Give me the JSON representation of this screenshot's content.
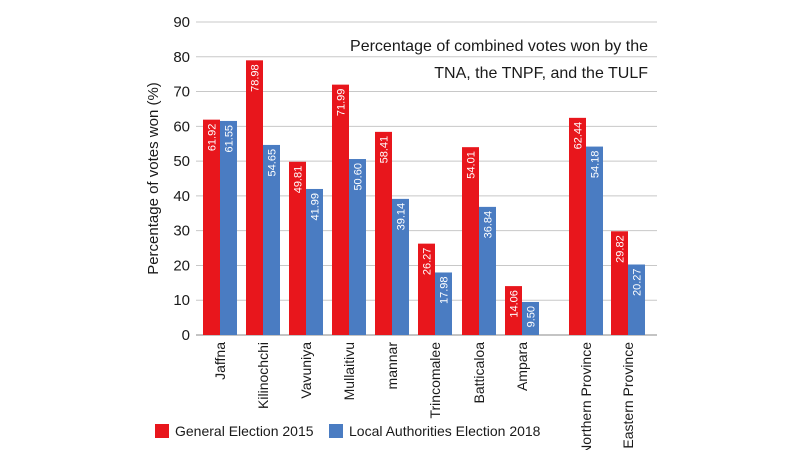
{
  "chart_data": {
    "type": "bar",
    "title_lines": [
      "Percentage of combined votes won by the",
      "TNA, the TNPF, and the TULF"
    ],
    "xlabel": "",
    "ylabel": "Percentage of votes won (%)",
    "ylim": [
      0,
      90
    ],
    "yticks": [
      0,
      10,
      20,
      30,
      40,
      50,
      60,
      70,
      80,
      90
    ],
    "grid": true,
    "legend_position": "bottom",
    "categories": [
      "Jaffna",
      "Kilinochchi",
      "Vavuniya",
      "Mullaitivu",
      "mannar",
      "Trincomalee",
      "Batticaloa",
      "Ampara",
      "Northern Province",
      "Eastern Province"
    ],
    "series": [
      {
        "name": "General Election 2015",
        "color": "#e8161c",
        "values": [
          61.92,
          78.98,
          49.81,
          71.99,
          58.41,
          26.27,
          54.01,
          14.06,
          62.44,
          29.82
        ],
        "labels": [
          "61.92",
          "78.98",
          "49.81",
          "71.99",
          "58.41",
          "26.27",
          "54.01",
          "14.06",
          "62.44",
          "29.82"
        ]
      },
      {
        "name": "Local Authorities Election 2018",
        "color": "#4a7cc2",
        "values": [
          61.55,
          54.65,
          41.99,
          50.6,
          39.14,
          17.98,
          36.84,
          9.5,
          54.18,
          20.27
        ],
        "labels": [
          "61.55",
          "54.65",
          "41.99",
          "50.60",
          "39.14",
          "17.98",
          "36.84",
          "9.50",
          "54.18",
          "20.27"
        ]
      }
    ]
  }
}
